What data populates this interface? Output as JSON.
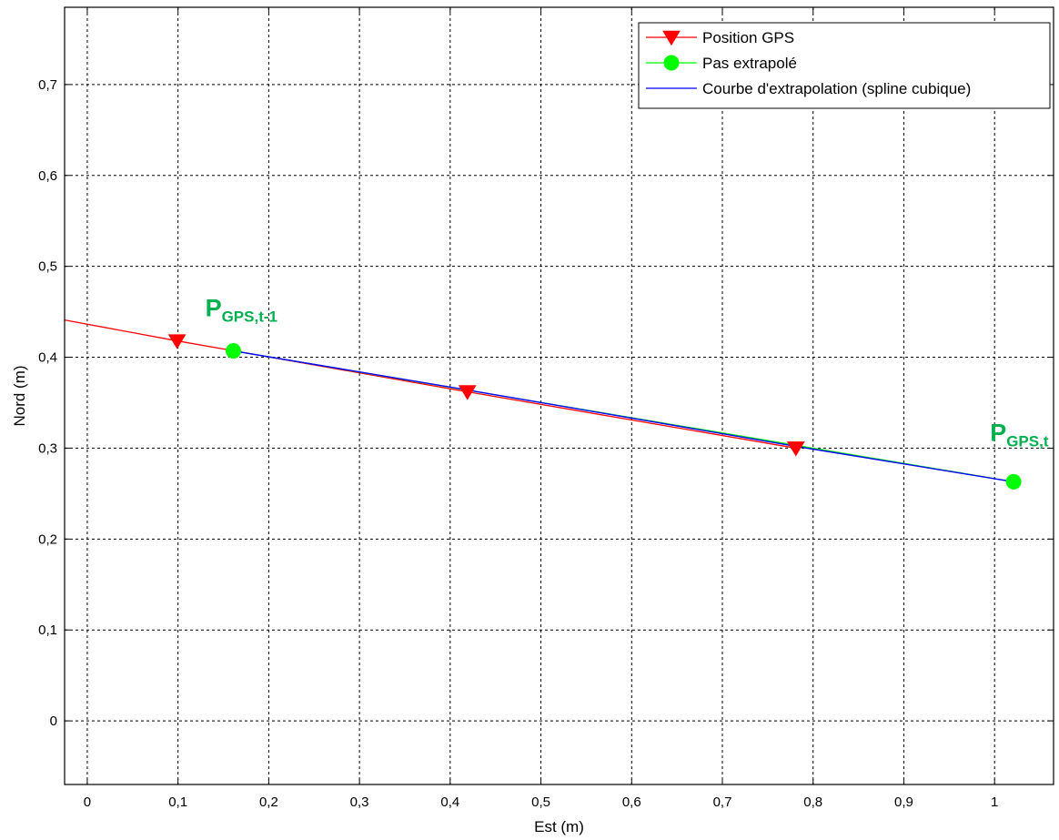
{
  "chart_data": {
    "type": "line",
    "xlabel": "Est (m)",
    "ylabel": "Nord (m)",
    "xlim": [
      -0.025,
      1.065
    ],
    "ylim": [
      -0.07,
      0.785
    ],
    "xticks": [
      0,
      0.1,
      0.2,
      0.3,
      0.4,
      0.5,
      0.6,
      0.7,
      0.8,
      0.9,
      1
    ],
    "xtick_labels": [
      "0",
      "0,1",
      "0,2",
      "0,3",
      "0,4",
      "0,5",
      "0,6",
      "0,7",
      "0,8",
      "0,9",
      "1"
    ],
    "yticks": [
      0,
      0.1,
      0.2,
      0.3,
      0.4,
      0.5,
      0.6,
      0.7
    ],
    "ytick_labels": [
      "0",
      "0,1",
      "0,2",
      "0,3",
      "0,4",
      "0,5",
      "0,6",
      "0,7"
    ],
    "grid": true,
    "legend_position": "top-right",
    "series": [
      {
        "name": "Position GPS",
        "color": "#ff0000",
        "marker": "triangle-down",
        "x": [
          -0.025,
          0.099,
          0.419,
          0.781
        ],
        "y": [
          0.441,
          0.418,
          0.362,
          0.3
        ],
        "marker_x": [
          0.099,
          0.419,
          0.781
        ],
        "marker_y": [
          0.418,
          0.362,
          0.3
        ]
      },
      {
        "name": "Pas extrapolé",
        "color": "#00ff00",
        "marker": "circle",
        "x": [
          0.161,
          1.021
        ],
        "y": [
          0.407,
          0.263
        ],
        "marker_x": [
          0.161,
          1.021
        ],
        "marker_y": [
          0.407,
          0.263
        ]
      },
      {
        "name": "Courbe d'extrapolation (spline cubique)",
        "color": "#0000ff",
        "marker": "none",
        "x": [
          0.161,
          0.419,
          0.6,
          0.781,
          1.021
        ],
        "y": [
          0.407,
          0.364,
          0.333,
          0.302,
          0.263
        ]
      }
    ],
    "annotations": [
      {
        "main": "P",
        "sub": "GPS,t-1",
        "x": 0.13,
        "y": 0.445,
        "color": "#00b050"
      },
      {
        "main": "P",
        "sub": "GPS,t",
        "x": 0.995,
        "y": 0.308,
        "color": "#00b050"
      }
    ]
  }
}
